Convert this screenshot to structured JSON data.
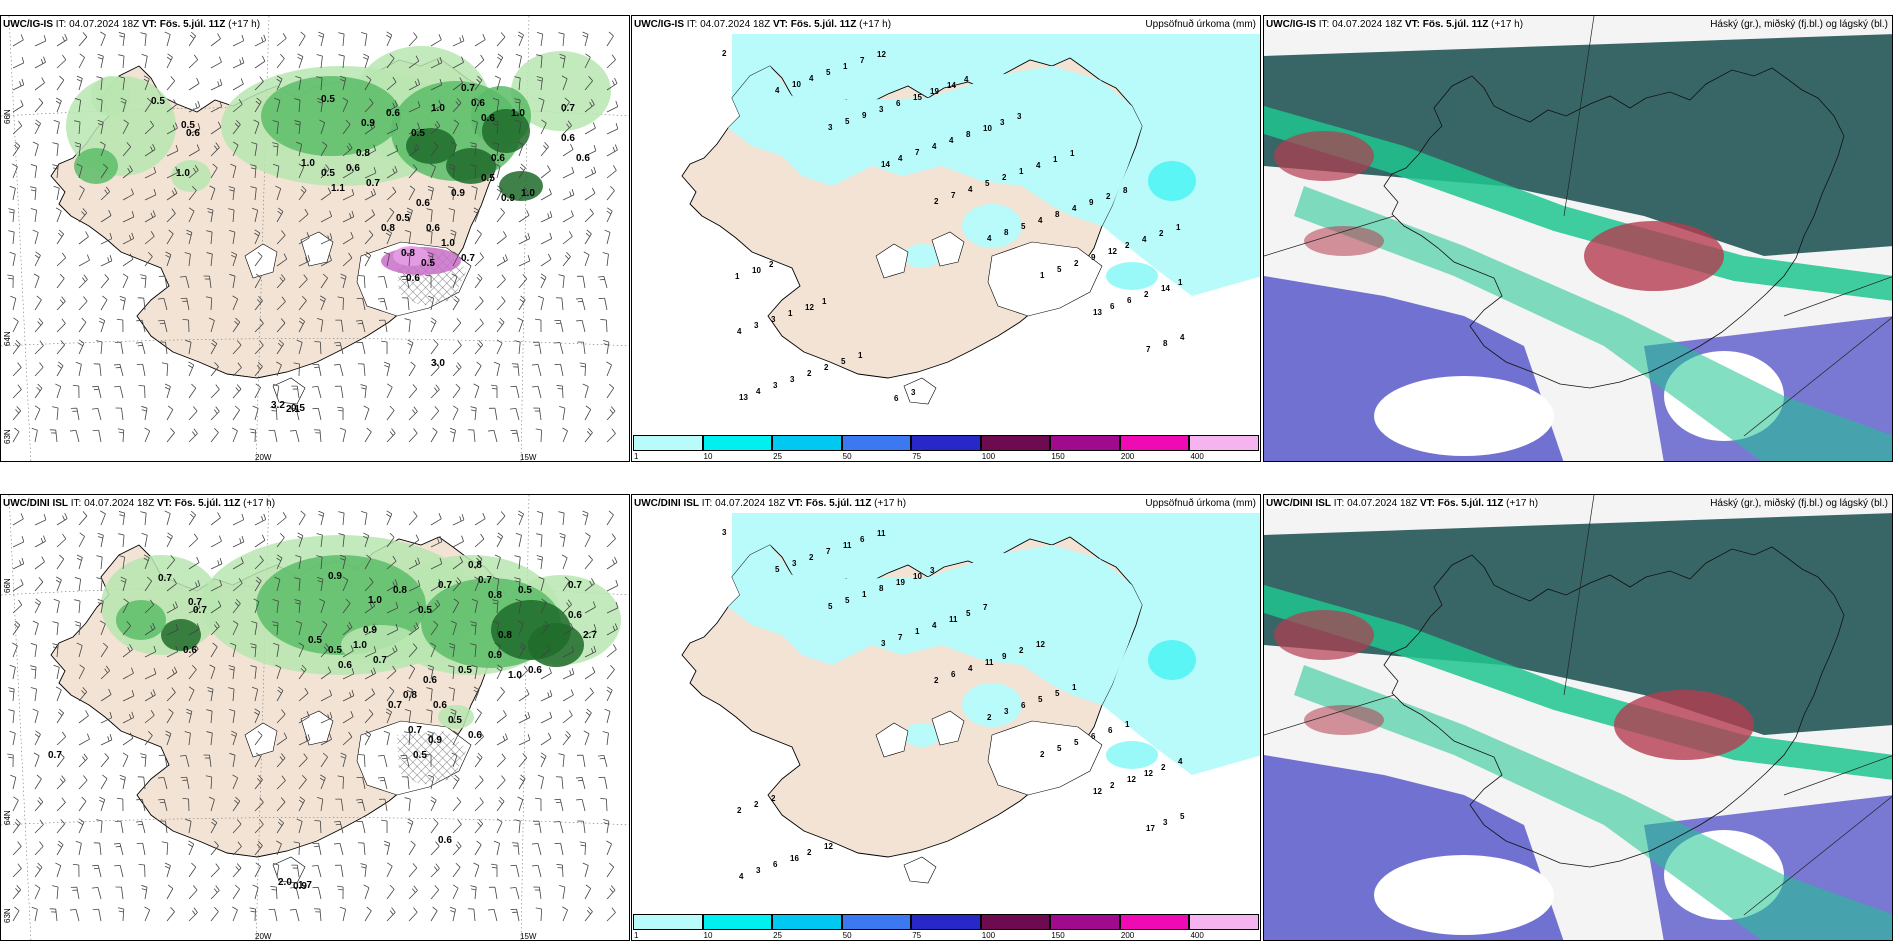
{
  "rows": [
    {
      "model": "UWC/IG-IS",
      "it": "IT: 04.07.2024 18Z",
      "vt": "VT: Fös. 5.júl. 11Z",
      "lead": "(+17 h)",
      "wind_values": [
        "0.5",
        "0.5",
        "0.6",
        "1.0",
        "0.5",
        "0.7",
        "0.6",
        "0.6",
        "1.0",
        "0.9",
        "0.6",
        "0.5",
        "1.0",
        "0.8",
        "0.6",
        "1.1",
        "0.5",
        "1.0",
        "0.7",
        "0.6",
        "0.9",
        "0.5",
        "0.8",
        "0.6",
        "1.0",
        "0.5",
        "0.6",
        "0.9",
        "1.0",
        "0.7",
        "0.6",
        "0.6",
        "0.8",
        "0.5",
        "0.7",
        "0.6",
        "3.0",
        "3.2",
        "2.1",
        "0.5"
      ],
      "precip_values": [
        "2",
        "4",
        "3",
        "14",
        "2",
        "4",
        "1",
        "13",
        "7",
        "13",
        "10",
        "5",
        "4",
        "7",
        "8",
        "5",
        "6",
        "8",
        "4",
        "4",
        "9",
        "7",
        "4",
        "5",
        "2",
        "6",
        "4",
        "3",
        "5",
        "3",
        "4",
        "5",
        "4",
        "9",
        "2",
        "4",
        "3",
        "1",
        "6",
        "4",
        "2",
        "8",
        "12",
        "14",
        "3",
        "2",
        "7",
        "15",
        "8",
        "1",
        "4",
        "2",
        "1",
        "3",
        "2",
        "12",
        "19",
        "10",
        "4",
        "9",
        "4",
        "1",
        "1",
        "5",
        "6",
        "14",
        "3",
        "1",
        "2",
        "2",
        "10",
        "12",
        "1",
        "3",
        "4",
        "3",
        "1",
        "8",
        "1",
        "2",
        "1"
      ],
      "cloud_title": "Háský (gr.), miðský (fj.bl.) og lágský (bl.)",
      "precip_title": "Uppsöfnuð úrkoma (mm)"
    },
    {
      "model": "UWC/DINI ISL",
      "it": "IT: 04.07.2024 18Z",
      "vt": "VT: Fös. 5.júl. 11Z",
      "lead": "(+17 h)",
      "wind_values": [
        "0.7",
        "0.7",
        "0.7",
        "0.6",
        "0.9",
        "0.8",
        "0.7",
        "0.8",
        "0.5",
        "1.0",
        "0.8",
        "0.5",
        "0.7",
        "0.9",
        "1.0",
        "0.6",
        "0.5",
        "0.5",
        "0.7",
        "0.6",
        "0.5",
        "0.8",
        "0.7",
        "0.6",
        "0.5",
        "0.9",
        "0.8",
        "1.0",
        "0.6",
        "0.7",
        "0.6",
        "2.7",
        "0.7",
        "0.9",
        "0.6",
        "0.5",
        "0.6",
        "2.0",
        "0.9",
        "1.7",
        "0.7"
      ],
      "precip_values": [
        "3",
        "5",
        "5",
        "3",
        "2",
        "2",
        "2",
        "12",
        "17",
        "4",
        "3",
        "5",
        "7",
        "6",
        "3",
        "5",
        "2",
        "3",
        "3",
        "2",
        "1",
        "1",
        "4",
        "6",
        "5",
        "12",
        "5",
        "6",
        "7",
        "8",
        "4",
        "11",
        "5",
        "6",
        "12",
        "2",
        "16",
        "11",
        "19",
        "11",
        "9",
        "5",
        "6",
        "2",
        "2",
        "2",
        "6",
        "10",
        "5",
        "2",
        "1",
        "1",
        "4",
        "2",
        "12",
        "11",
        "3",
        "7",
        "12"
      ],
      "cloud_title": "Háský (gr.), miðský (fj.bl.) og lágský (bl.)",
      "precip_title": "Uppsöfnuð úrkoma (mm)"
    }
  ],
  "colorbar": {
    "ticks": [
      "1",
      "10",
      "25",
      "50",
      "75",
      "100",
      "150",
      "200",
      "400"
    ],
    "colors": [
      "#b9fafa",
      "#00f0f0",
      "#00c8f0",
      "#3c78f0",
      "#2828c8",
      "#6e0a50",
      "#a00a8c",
      "#f00ab4",
      "#f5b4f0"
    ]
  },
  "axes": {
    "lat_top": "66N",
    "lat_mid": "64N",
    "lat_bot": "63N",
    "lon_a": "20W",
    "lon_b": "15W"
  },
  "colors": {
    "land": "#f2e3d5",
    "sea_precip": "#b9fafa",
    "green_light": "#b8e6b0",
    "green_mid": "#5cbc68",
    "green_dark": "#1f6b2a",
    "cloud_dark": "#2d5e5e",
    "cloud_teal": "#1ec48e",
    "cloud_blue": "#5050c8",
    "cloud_red": "#b43c50"
  }
}
